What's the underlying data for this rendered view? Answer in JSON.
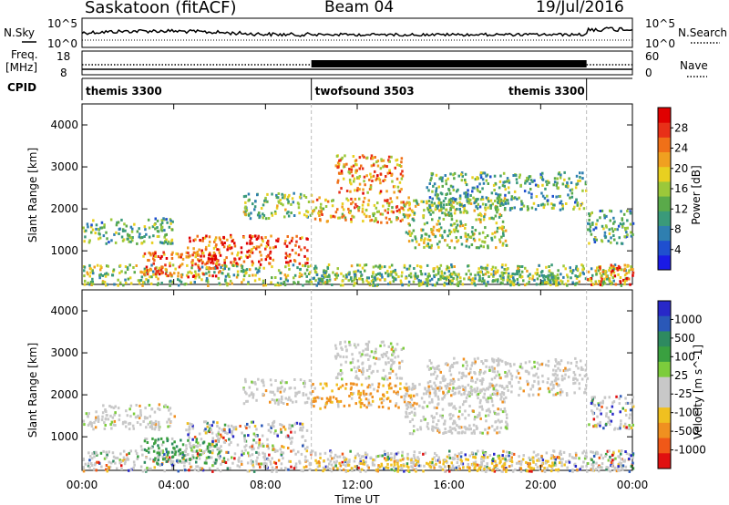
{
  "header": {
    "station": "Saskatoon (fitACF)",
    "beam": "Beam 04",
    "date": "19/Jul/2016"
  },
  "strips": {
    "nsky_label": "N.Sky",
    "nsearch_label": "N.Search",
    "nsky_ticks": [
      "10^5",
      "10^0"
    ],
    "nsearch_ticks": [
      "10^5",
      "10^0"
    ],
    "freq_label": "Freq.",
    "freq_unit": "[MHz]",
    "freq_ticks": [
      "18",
      "8"
    ],
    "nave_label": "Nave",
    "nave_ticks": [
      "60",
      "0"
    ],
    "cpid_label": "CPID",
    "modes": [
      {
        "name": "themis 3300",
        "start_h": 0,
        "end_h": 10
      },
      {
        "name": "twofsound 3503",
        "start_h": 10,
        "end_h": 22
      },
      {
        "name": "themis 3300",
        "start_h": 22,
        "end_h": 24
      }
    ]
  },
  "colors": {
    "power": [
      "#1a1ae6",
      "#1f4fcf",
      "#2f7fb0",
      "#3a9a7a",
      "#5aaa4a",
      "#9bc83a",
      "#e8d020",
      "#f0a020",
      "#f07018",
      "#e83018",
      "#e00000"
    ],
    "velocity": [
      "#2828c8",
      "#2a58b8",
      "#2e8a60",
      "#3aa040",
      "#7ccc3c",
      "#c8c8c8",
      "#c8c8c8",
      "#f0c020",
      "#f09020",
      "#f05818",
      "#e01010"
    ]
  },
  "chart_data": [
    {
      "type": "heatmap",
      "name": "power",
      "xlabel": "",
      "ylabel": "Slant Range [km]",
      "xlim": [
        0,
        24
      ],
      "ylim": [
        200,
        4500
      ],
      "yticks": [
        1000,
        2000,
        3000,
        4000
      ],
      "colorbar": {
        "label": "Power [dB]",
        "range": [
          0,
          32
        ],
        "ticks": [
          4,
          8,
          12,
          16,
          20,
          24,
          28
        ]
      }
    },
    {
      "type": "heatmap",
      "name": "velocity",
      "xlabel": "Time UT",
      "ylabel": "Slant Range [km]",
      "xlim": [
        0,
        24
      ],
      "ylim": [
        200,
        4500
      ],
      "yticks": [
        1000,
        2000,
        3000,
        4000
      ],
      "xticks": [
        "00:00",
        "04:00",
        "08:00",
        "12:00",
        "16:00",
        "20:00",
        "00:00"
      ],
      "colorbar": {
        "label": "Velocity [m s^-1]",
        "ticks": [
          1000,
          500,
          100,
          25,
          -25,
          -100,
          -500,
          -1000
        ]
      }
    }
  ],
  "echo_regions": [
    {
      "t0": 0,
      "t1": 24,
      "r0": 200,
      "r1": 700,
      "intensity": 0.45,
      "vel": "mix"
    },
    {
      "t0": 0,
      "t1": 4,
      "r0": 1200,
      "r1": 1800,
      "intensity": 0.35,
      "vel": "grey"
    },
    {
      "t0": 2.5,
      "t1": 6,
      "r0": 400,
      "r1": 1000,
      "intensity": 0.85,
      "vel": "green"
    },
    {
      "t0": 4.5,
      "t1": 9.8,
      "r0": 700,
      "r1": 1400,
      "intensity": 0.9,
      "vel": "mix"
    },
    {
      "t0": 7,
      "t1": 10,
      "r0": 1800,
      "r1": 2400,
      "intensity": 0.4,
      "vel": "grey"
    },
    {
      "t0": 10,
      "t1": 14.5,
      "r0": 1700,
      "r1": 2300,
      "intensity": 0.7,
      "vel": "orange"
    },
    {
      "t0": 11,
      "t1": 14,
      "r0": 2400,
      "r1": 3300,
      "intensity": 0.75,
      "vel": "grey"
    },
    {
      "t0": 14,
      "t1": 18.5,
      "r0": 1100,
      "r1": 2300,
      "intensity": 0.5,
      "vel": "grey"
    },
    {
      "t0": 15,
      "t1": 22,
      "r0": 2000,
      "r1": 2900,
      "intensity": 0.35,
      "vel": "grey"
    },
    {
      "t0": 10,
      "t1": 21,
      "r0": 200,
      "r1": 550,
      "intensity": 0.4,
      "vel": "yellow"
    },
    {
      "t0": 22,
      "t1": 24,
      "r0": 200,
      "r1": 700,
      "intensity": 0.8,
      "vel": "mix"
    },
    {
      "t0": 22,
      "t1": 24,
      "r0": 1200,
      "r1": 2000,
      "intensity": 0.3,
      "vel": "mix"
    }
  ]
}
